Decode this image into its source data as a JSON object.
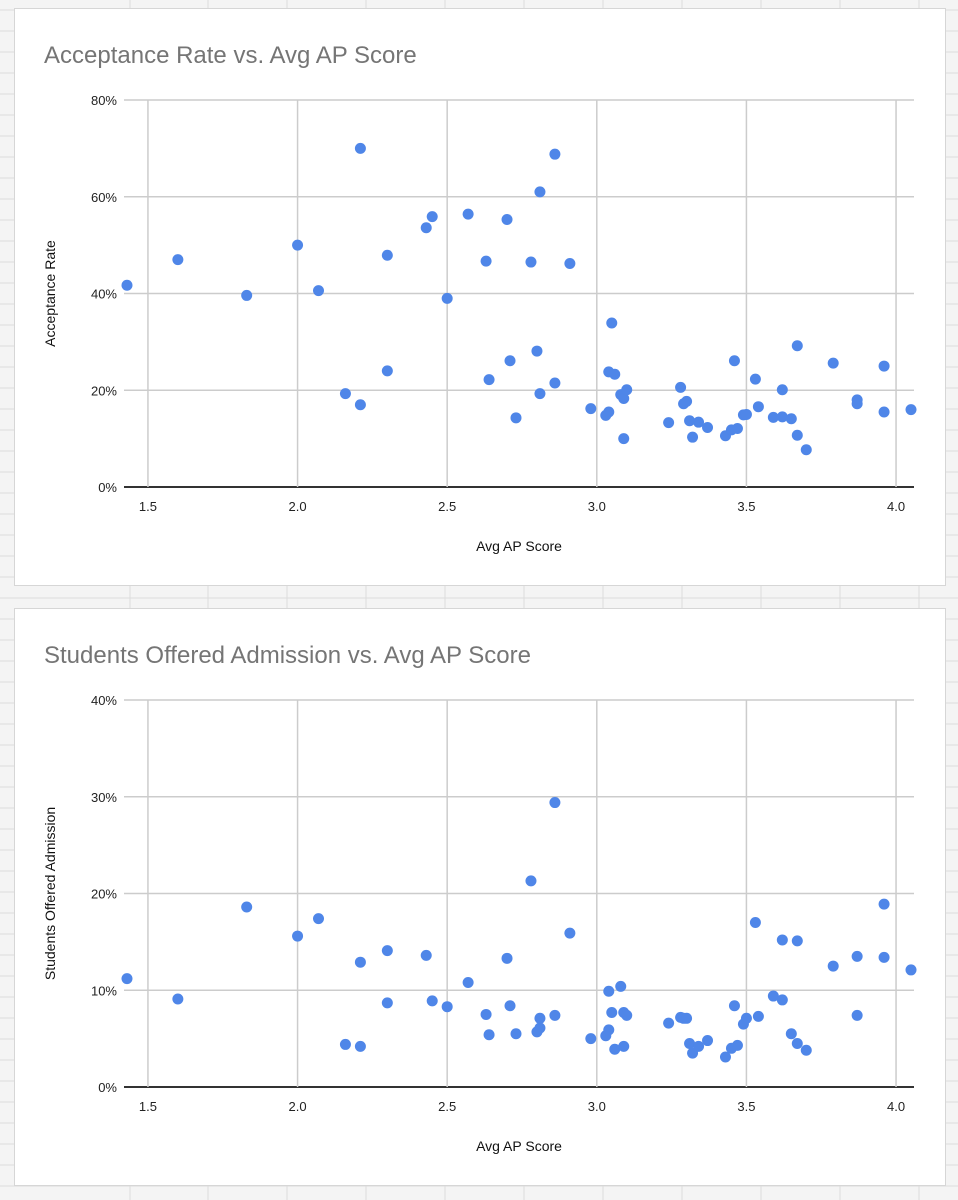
{
  "colors": {
    "point": "#4f86e8",
    "grid": "#cccccc",
    "title": "#757575",
    "background": "#ffffff"
  },
  "chart_data": [
    {
      "type": "scatter",
      "title": "Acceptance Rate vs. Avg AP Score",
      "xlabel": "Avg AP Score",
      "ylabel": "Acceptance Rate",
      "xlim": [
        1.42,
        4.06
      ],
      "ylim": [
        0,
        80
      ],
      "xticks": [
        1.5,
        2.0,
        2.5,
        3.0,
        3.5,
        4.0
      ],
      "xtick_labels": [
        "1.5",
        "2.0",
        "2.5",
        "3.0",
        "3.5",
        "4.0"
      ],
      "yticks": [
        0,
        20,
        40,
        60,
        80
      ],
      "ytick_labels": [
        "0%",
        "20%",
        "40%",
        "60%",
        "80%"
      ],
      "grid": true,
      "legend": "none",
      "series": [
        {
          "x": [
            1.43,
            1.6,
            1.83,
            2.0,
            2.07,
            2.16,
            2.21,
            2.21,
            2.3,
            2.3,
            2.43,
            2.45,
            2.5,
            2.57,
            2.63,
            2.64,
            2.7,
            2.71,
            2.73,
            2.78,
            2.8,
            2.81,
            2.81,
            2.86,
            2.86,
            2.91,
            2.98,
            3.03,
            3.04,
            3.04,
            3.05,
            3.06,
            3.08,
            3.09,
            3.09,
            3.1,
            3.24,
            3.28,
            3.29,
            3.3,
            3.31,
            3.32,
            3.34,
            3.37,
            3.43,
            3.45,
            3.46,
            3.47,
            3.49,
            3.5,
            3.53,
            3.54,
            3.59,
            3.62,
            3.62,
            3.65,
            3.67,
            3.67,
            3.7,
            3.79,
            3.87,
            3.87,
            3.96,
            3.96,
            4.05
          ],
          "y": [
            41.7,
            47,
            39.6,
            50,
            40.6,
            19.3,
            70,
            17,
            24,
            47.9,
            53.6,
            55.9,
            39,
            56.4,
            46.7,
            22.2,
            55.3,
            26.1,
            14.3,
            46.5,
            28.1,
            61,
            19.3,
            21.5,
            68.8,
            46.2,
            16.2,
            14.8,
            15.5,
            23.8,
            33.9,
            23.3,
            19.1,
            18.3,
            10,
            20.1,
            13.3,
            20.6,
            17.2,
            17.7,
            13.7,
            10.3,
            13.4,
            12.3,
            10.6,
            11.8,
            26.1,
            12.1,
            14.9,
            15,
            22.3,
            16.6,
            14.4,
            20.1,
            14.5,
            14.1,
            29.2,
            10.7,
            7.7,
            25.6,
            18,
            17.2,
            25,
            15.5,
            16
          ]
        }
      ]
    },
    {
      "type": "scatter",
      "title": "Students Offered Admission vs. Avg AP Score",
      "xlabel": "Avg AP Score",
      "ylabel": "Students Offered Admission",
      "xlim": [
        1.42,
        4.06
      ],
      "ylim": [
        0,
        40
      ],
      "xticks": [
        1.5,
        2.0,
        2.5,
        3.0,
        3.5,
        4.0
      ],
      "xtick_labels": [
        "1.5",
        "2.0",
        "2.5",
        "3.0",
        "3.5",
        "4.0"
      ],
      "yticks": [
        0,
        10,
        20,
        30,
        40
      ],
      "ytick_labels": [
        "0%",
        "10%",
        "20%",
        "30%",
        "40%"
      ],
      "grid": true,
      "legend": "none",
      "series": [
        {
          "x": [
            1.43,
            1.6,
            1.83,
            2.0,
            2.07,
            2.16,
            2.21,
            2.21,
            2.3,
            2.3,
            2.43,
            2.45,
            2.5,
            2.57,
            2.63,
            2.64,
            2.7,
            2.71,
            2.73,
            2.78,
            2.8,
            2.81,
            2.81,
            2.86,
            2.86,
            2.91,
            2.98,
            3.03,
            3.04,
            3.04,
            3.05,
            3.06,
            3.08,
            3.09,
            3.09,
            3.1,
            3.24,
            3.28,
            3.29,
            3.3,
            3.31,
            3.32,
            3.34,
            3.37,
            3.43,
            3.45,
            3.46,
            3.47,
            3.49,
            3.5,
            3.53,
            3.54,
            3.59,
            3.62,
            3.62,
            3.65,
            3.67,
            3.67,
            3.7,
            3.79,
            3.87,
            3.87,
            3.96,
            3.96,
            4.05
          ],
          "y": [
            11.2,
            9.1,
            18.6,
            15.6,
            17.4,
            4.4,
            4.2,
            12.9,
            8.7,
            14.1,
            13.6,
            8.9,
            8.3,
            10.8,
            7.5,
            5.4,
            13.3,
            8.4,
            5.5,
            21.3,
            5.7,
            6.1,
            7.1,
            29.4,
            7.4,
            15.9,
            5,
            5.3,
            5.9,
            9.9,
            7.7,
            3.9,
            10.4,
            7.7,
            4.2,
            7.4,
            6.6,
            7.2,
            7.1,
            7.1,
            4.5,
            3.5,
            4.2,
            4.8,
            3.1,
            4,
            8.4,
            4.3,
            6.5,
            7.1,
            17,
            7.3,
            9.4,
            15.2,
            9,
            5.5,
            15.1,
            4.5,
            3.8,
            12.5,
            13.5,
            7.4,
            18.9,
            13.4,
            12.1
          ]
        }
      ]
    }
  ]
}
